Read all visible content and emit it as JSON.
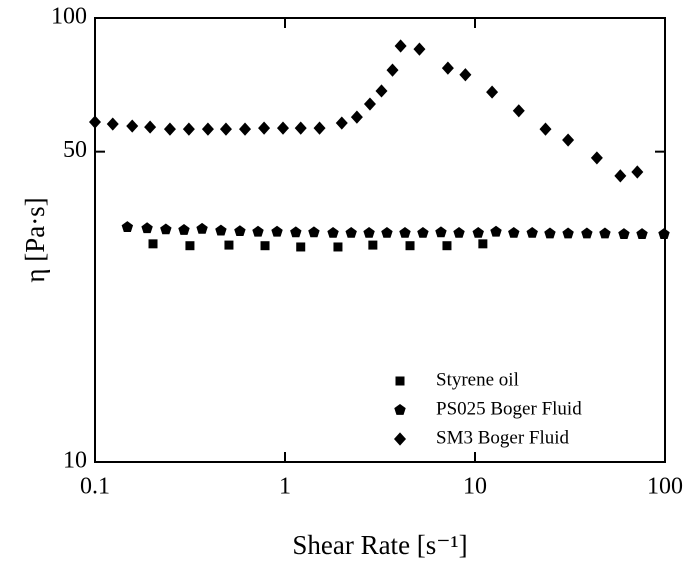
{
  "chart_data": {
    "type": "scatter",
    "x_label": "Shear Rate [s⁻¹]",
    "y_label": "η [Pa·s]",
    "xlog": true,
    "ylog": true,
    "xlim": [
      0.1,
      100
    ],
    "ylim": [
      10,
      100
    ],
    "xticks": [
      0.1,
      1,
      10,
      100
    ],
    "yticks": [
      10,
      50,
      100
    ],
    "legend_position": "lower right",
    "series": [
      {
        "name": "Styrene oil",
        "color": "#000000",
        "marker": "square",
        "x": [
          0.202,
          0.316,
          0.507,
          0.785,
          1.21,
          1.9,
          2.9,
          4.55,
          7.12,
          11.0
        ],
        "values": [
          31.0,
          30.7,
          30.8,
          30.7,
          30.5,
          30.5,
          30.8,
          30.7,
          30.7,
          31.0
        ]
      },
      {
        "name": "PS025 Boger Fluid",
        "color": "#000000",
        "marker": "pentagon",
        "x": [
          0.148,
          0.188,
          0.236,
          0.294,
          0.366,
          0.46,
          0.579,
          0.721,
          0.908,
          1.14,
          1.42,
          1.79,
          2.23,
          2.77,
          3.44,
          4.28,
          5.32,
          6.62,
          8.24,
          10.4,
          12.9,
          16.0,
          20.0,
          24.8,
          30.9,
          38.8,
          48.3,
          60.8,
          75.7,
          98.8
        ],
        "values": [
          33.8,
          33.6,
          33.4,
          33.3,
          33.5,
          33.2,
          33.1,
          33.0,
          33.0,
          32.9,
          32.9,
          32.8,
          32.8,
          32.8,
          32.8,
          32.8,
          32.8,
          32.9,
          32.8,
          32.8,
          33.0,
          32.8,
          32.8,
          32.7,
          32.7,
          32.7,
          32.7,
          32.6,
          32.6,
          32.6
        ]
      },
      {
        "name": "SM3 Boger Fluid",
        "color": "#000000",
        "marker": "diamond",
        "x": [
          0.1,
          0.124,
          0.157,
          0.195,
          0.248,
          0.312,
          0.393,
          0.489,
          0.616,
          0.776,
          0.976,
          1.21,
          1.52,
          1.99,
          2.39,
          2.8,
          3.22,
          3.68,
          4.06,
          5.1,
          7.2,
          8.9,
          12.3,
          17.0,
          23.5,
          30.9,
          43.8,
          58.2,
          71.5
        ],
        "values": [
          58.3,
          57.7,
          57.1,
          56.8,
          56.2,
          56.2,
          56.2,
          56.2,
          56.2,
          56.5,
          56.5,
          56.5,
          56.5,
          58.0,
          59.8,
          64.0,
          68.5,
          76.3,
          86.5,
          85.1,
          77.1,
          74.5,
          68.1,
          61.8,
          56.2,
          53.1,
          48.4,
          44.1,
          45.0
        ]
      }
    ]
  }
}
